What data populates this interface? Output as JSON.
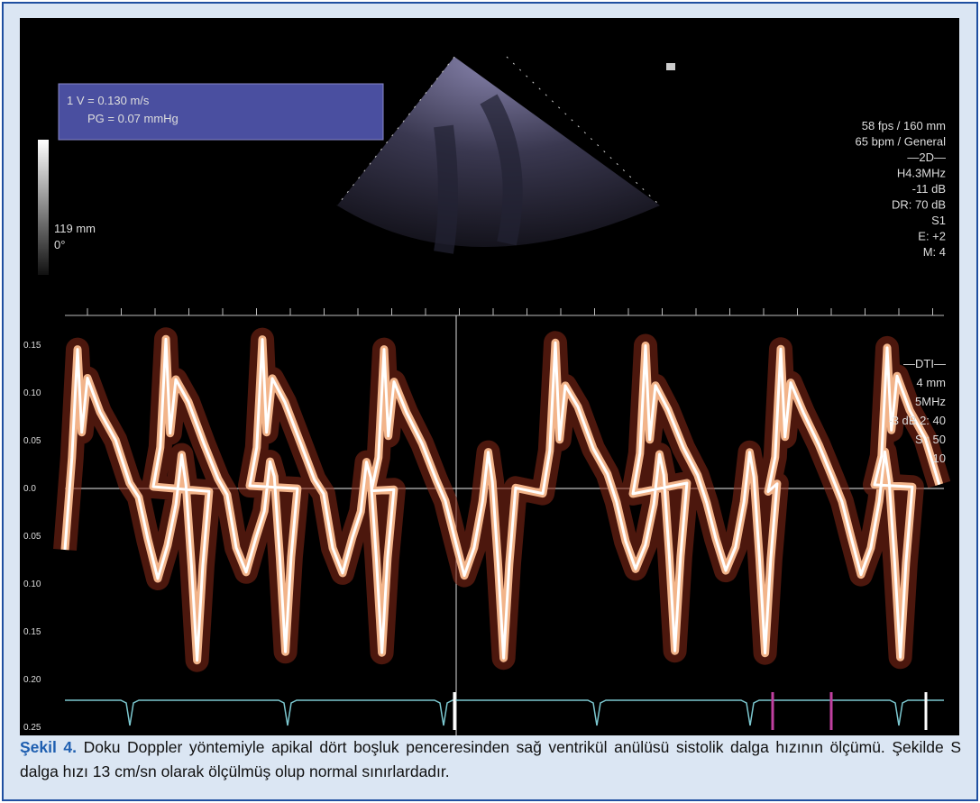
{
  "figure": {
    "measurement": [
      "1  V = 0.130 m/s",
      "PG = 0.07 mmHg"
    ],
    "depth_labels": [
      "119 mm",
      "0°"
    ],
    "settings_2d": [
      "58 fps / 160 mm",
      "65 bpm / General",
      "—2D—",
      "H4.3MHz",
      "-11 dB",
      "DR: 70 dB",
      "S1",
      "E: +2",
      "M: 4"
    ],
    "settings_dti": [
      "—DTI—",
      "4 mm",
      "5MHz",
      "-3 dB   2: 40",
      "S    : 50",
      "10"
    ],
    "velocity_scale": [
      "0.15",
      "0.10",
      "0.05",
      "0.0",
      "0.05",
      "0.10",
      "0.15",
      "0.20",
      "0.25"
    ]
  },
  "caption": {
    "label": "Şekil 4.",
    "text": " Doku Doppler yöntemiyle apikal dört boşluk penceresinden sağ ventrikül anülüsü sistolik dalga hızının ölçümü. Şekilde S dalga hızı 13 cm/sn olarak ölçülmüş olup normal sınırlardadır."
  }
}
